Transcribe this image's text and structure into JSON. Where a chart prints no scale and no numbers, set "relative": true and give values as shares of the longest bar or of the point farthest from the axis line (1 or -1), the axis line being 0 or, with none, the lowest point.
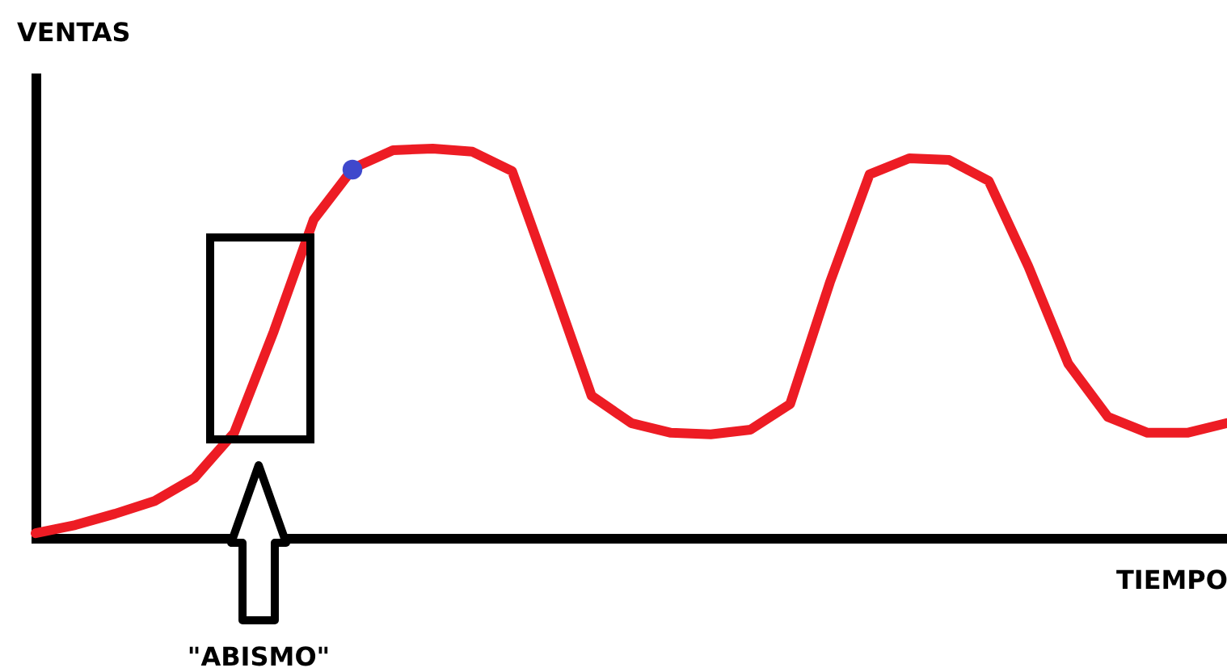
{
  "chart_data": {
    "type": "line",
    "xlabel": "TIEMPO",
    "ylabel": "VENTAS",
    "relative": true,
    "grid": false,
    "legend": false,
    "marker": "none",
    "line_style": "solid",
    "categories": [
      null,
      null,
      null,
      null,
      null,
      null,
      null,
      null,
      null,
      null,
      null,
      null,
      null,
      null,
      null,
      null,
      null,
      null,
      null,
      null,
      null,
      null,
      null,
      null,
      null,
      null,
      null,
      null,
      null,
      null,
      null
    ],
    "series": [
      {
        "type": "line",
        "color": "#ed1c24",
        "values": [
          0.012,
          0.033,
          0.062,
          0.095,
          0.154,
          0.27,
          0.531,
          0.817,
          0.95,
          0.996,
          1.0,
          0.992,
          0.942,
          0.656,
          0.365,
          0.295,
          0.27,
          0.266,
          0.278,
          0.344,
          0.656,
          0.934,
          0.975,
          0.971,
          0.917,
          0.697,
          0.448,
          0.311,
          0.27,
          0.27,
          0.295
        ]
      }
    ],
    "annotations": [
      "\"ABISMO\""
    ]
  }
}
